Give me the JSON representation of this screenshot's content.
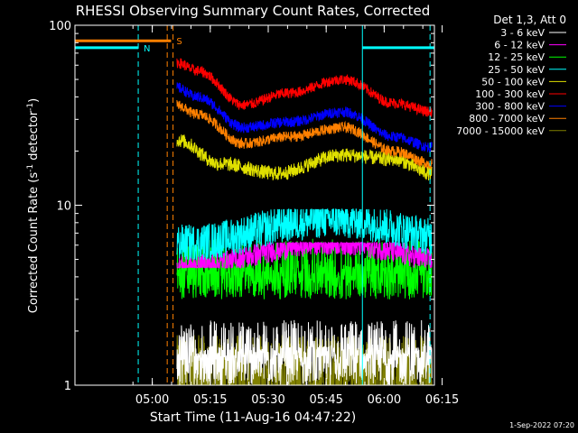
{
  "chart_data": {
    "type": "line",
    "title": "RHESSI Observing Summary Count Rates, Corrected",
    "xlabel": "Start Time (11-Aug-16 04:47:22)",
    "ylabel": "Corrected Count Rate (s⁻¹ detector⁻¹)",
    "ylabel_parts": {
      "main": "Corrected Count Rate (s",
      "sup1": "-1",
      "mid": " detector",
      "sup2": "-1",
      "end": ")"
    },
    "y_scale": "log",
    "ylim": [
      1,
      100
    ],
    "xlim_minutes": [
      -7.37,
      85.63
    ],
    "x_tick_labels": [
      "05:00",
      "05:15",
      "05:30",
      "05:45",
      "06:00",
      "06:15"
    ],
    "y_tick_labels": [
      "1",
      "10",
      "100"
    ],
    "legend_header": "Det 1,3, Att 0",
    "legend_position": "right",
    "timestamp": "1-Sep-2022 07:20",
    "flags": [
      {
        "label": "N",
        "color": "#00ffff",
        "level": 75,
        "segments": [
          [
            -7.37,
            9.0
          ],
          [
            67.0,
            85.63
          ]
        ]
      },
      {
        "label": "S",
        "color": "#ff8000",
        "level": 82,
        "segments": [
          [
            -7.37,
            17.5
          ]
        ]
      }
    ],
    "marker_lines": [
      {
        "time": 9.0,
        "color": "#00ffff"
      },
      {
        "time": 16.5,
        "color": "#ff8000"
      },
      {
        "time": 18.0,
        "color": "#ff8000"
      },
      {
        "time": 84.5,
        "color": "#00ffff"
      }
    ],
    "solid_line": {
      "time": 67.0,
      "color": "#00ffff"
    },
    "data_start_minutes": 19,
    "data_end_minutes": 85,
    "series": [
      {
        "name": "3 - 6 keV",
        "color": "#ffffff",
        "min": 1.0,
        "max": 2.3,
        "spiky": true
      },
      {
        "name": "6 - 12 keV",
        "color": "#ff00ff",
        "min": 4.5,
        "max": 6.2,
        "noise": 0.05
      },
      {
        "name": "12 - 25 keV",
        "color": "#00ff00",
        "min": 3.0,
        "max": 6.5,
        "spiky": true
      },
      {
        "name": "25 - 50 keV",
        "color": "#00ffff",
        "min": 5.0,
        "max": 9.5,
        "noise": 0.08
      },
      {
        "name": "50 - 100 keV",
        "color": "#e0e000",
        "profile": [
          [
            19,
            23
          ],
          [
            30,
            17
          ],
          [
            45,
            15
          ],
          [
            62,
            19
          ],
          [
            75,
            18
          ],
          [
            85,
            15
          ]
        ],
        "noise": 0.04
      },
      {
        "name": "100 - 300 keV",
        "color": "#ff0000",
        "profile": [
          [
            19,
            62
          ],
          [
            24,
            56
          ],
          [
            36,
            36
          ],
          [
            48,
            42
          ],
          [
            62,
            50
          ],
          [
            75,
            37
          ],
          [
            85,
            33
          ]
        ],
        "noise": 0.03
      },
      {
        "name": "300 - 800 keV",
        "color": "#0000ff",
        "profile": [
          [
            19,
            45
          ],
          [
            24,
            40
          ],
          [
            36,
            27
          ],
          [
            48,
            29
          ],
          [
            62,
            33
          ],
          [
            75,
            24
          ],
          [
            85,
            21
          ]
        ],
        "noise": 0.03
      },
      {
        "name": "800 - 7000 keV",
        "color": "#ff8000",
        "profile": [
          [
            19,
            36
          ],
          [
            24,
            32
          ],
          [
            36,
            22
          ],
          [
            48,
            24
          ],
          [
            62,
            27
          ],
          [
            75,
            20
          ],
          [
            85,
            17
          ]
        ],
        "noise": 0.03
      },
      {
        "name": "7000 - 15000 keV",
        "color": "#808000",
        "min": 1.0,
        "max": 1.9,
        "dense": true
      }
    ]
  }
}
